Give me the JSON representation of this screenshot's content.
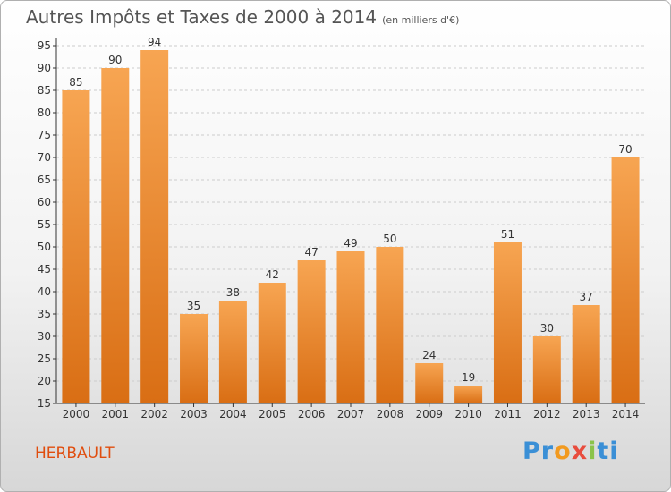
{
  "header": {
    "title": "Autres Impôts et Taxes de 2000 à 2014",
    "unit": "(en milliers d'€)"
  },
  "footer": {
    "place": "HERBAULT",
    "logo": {
      "letters": [
        "P",
        "r",
        "o",
        "x",
        "i",
        "t",
        "i"
      ],
      "colors": [
        "#3a8fd6",
        "#3a8fd6",
        "#f29a1f",
        "#e84c3d",
        "#8bc34a",
        "#3a8fd6",
        "#3a8fd6"
      ]
    }
  },
  "chart_data": {
    "type": "bar",
    "title": "Autres Impôts et Taxes de 2000 à 2014",
    "subtitle": "(en milliers d'€)",
    "xlabel": "",
    "ylabel": "",
    "categories": [
      "2000",
      "2001",
      "2002",
      "2003",
      "2004",
      "2005",
      "2006",
      "2007",
      "2008",
      "2009",
      "2010",
      "2011",
      "2012",
      "2013",
      "2014"
    ],
    "values": [
      85,
      90,
      94,
      35,
      38,
      42,
      47,
      49,
      50,
      24,
      19,
      51,
      30,
      37,
      70
    ],
    "ylim": [
      15,
      95
    ],
    "yticks": [
      15,
      20,
      25,
      30,
      35,
      40,
      45,
      50,
      55,
      60,
      65,
      70,
      75,
      80,
      85,
      90,
      95
    ],
    "grid": true,
    "colors": {
      "bar_light": "#f7a552",
      "bar_dark": "#d96e14",
      "axis": "#333333",
      "grid": "#cccccc"
    }
  }
}
